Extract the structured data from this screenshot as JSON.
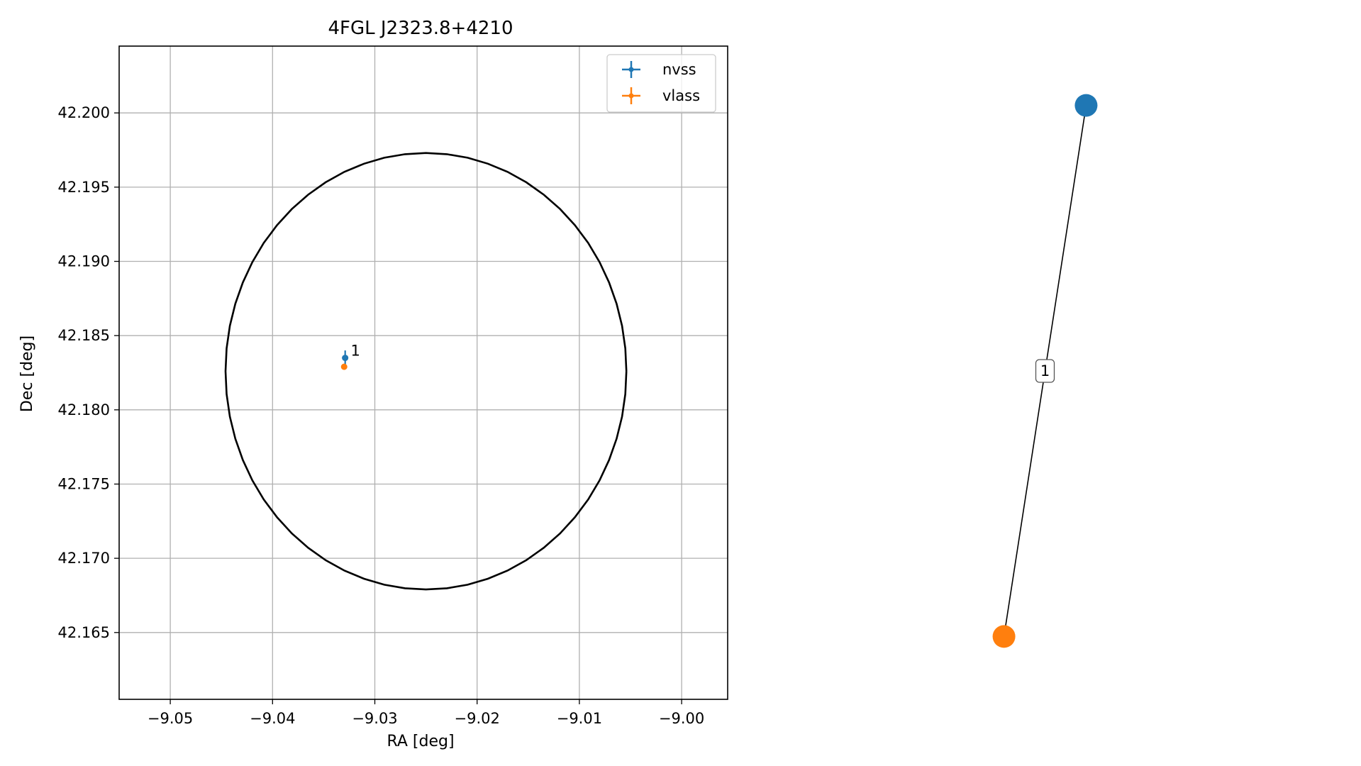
{
  "chart_data": [
    {
      "type": "scatter",
      "title": "4FGL J2323.8+4210",
      "xlabel": "RA [deg]",
      "ylabel": "Dec [deg]",
      "xlim": [
        -9.055,
        -8.9955
      ],
      "ylim": [
        42.1605,
        42.2045
      ],
      "grid": true,
      "legend_position": "top-right",
      "x_ticks": [
        {
          "value": -9.05,
          "label": "−9.05"
        },
        {
          "value": -9.04,
          "label": "−9.04"
        },
        {
          "value": -9.03,
          "label": "−9.03"
        },
        {
          "value": -9.02,
          "label": "−9.02"
        },
        {
          "value": -9.01,
          "label": "−9.01"
        },
        {
          "value": -9.0,
          "label": "−9.00"
        }
      ],
      "y_ticks": [
        {
          "value": 42.165,
          "label": "42.165"
        },
        {
          "value": 42.17,
          "label": "42.170"
        },
        {
          "value": 42.175,
          "label": "42.175"
        },
        {
          "value": 42.18,
          "label": "42.180"
        },
        {
          "value": 42.185,
          "label": "42.185"
        },
        {
          "value": 42.19,
          "label": "42.190"
        },
        {
          "value": 42.195,
          "label": "42.195"
        },
        {
          "value": 42.2,
          "label": "42.200"
        }
      ],
      "ellipse": {
        "center": [
          -9.025,
          42.1826
        ],
        "ra_radius": 0.0196,
        "dec_radius": 0.0147,
        "color": "#000000"
      },
      "series": [
        {
          "name": "nvss",
          "color": "#1f77b4",
          "points": [
            {
              "x": -9.0329,
              "y": 42.1835,
              "xerr": 0.0003,
              "yerr": 0.0005
            }
          ]
        },
        {
          "name": "vlass",
          "color": "#ff7f0e",
          "points": [
            {
              "x": -9.033,
              "y": 42.1829,
              "xerr": 0.0001,
              "yerr": 0.0001
            }
          ]
        }
      ],
      "annotations": [
        {
          "text": "1",
          "x": -9.0325,
          "y": 42.1835
        }
      ]
    },
    {
      "type": "network",
      "nodes": [
        {
          "id": "nvss",
          "color": "#1f77b4",
          "x": 0.82,
          "y": 0.95
        },
        {
          "id": "vlass",
          "color": "#ff7f0e",
          "x": 0.18,
          "y": 0.05
        }
      ],
      "edges": [
        {
          "from": "nvss",
          "to": "vlass",
          "label": "1"
        }
      ]
    }
  ]
}
